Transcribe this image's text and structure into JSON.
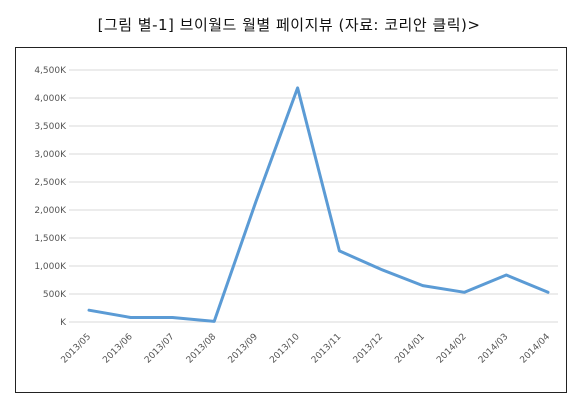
{
  "caption": "[그림 별-1] 브이월드 월별 페이지뷰 (자료: 코리안 클릭)>",
  "chart_data": {
    "type": "line",
    "title": "",
    "xlabel": "",
    "ylabel": "",
    "ylim": [
      0,
      4500
    ],
    "y_ticks": [
      0,
      500,
      1000,
      1500,
      2000,
      2500,
      3000,
      3500,
      4000,
      4500
    ],
    "y_tick_labels": [
      "K",
      "500K",
      "1,000K",
      "1,500K",
      "2,000K",
      "2,500K",
      "3,000K",
      "3,500K",
      "4,000K",
      "4,500K"
    ],
    "categories": [
      "2013/05",
      "2013/06",
      "2013/07",
      "2013/08",
      "2013/09",
      "2013/10",
      "2013/11",
      "2013/12",
      "2014/01",
      "2014/02",
      "2014/03",
      "2014/04"
    ],
    "values": [
      210,
      80,
      80,
      10,
      2150,
      4180,
      1270,
      940,
      650,
      530,
      840,
      530
    ],
    "grid": true,
    "legend": "none",
    "line_color": "#5b9bd5",
    "grid_color": "#d9d9d9"
  }
}
